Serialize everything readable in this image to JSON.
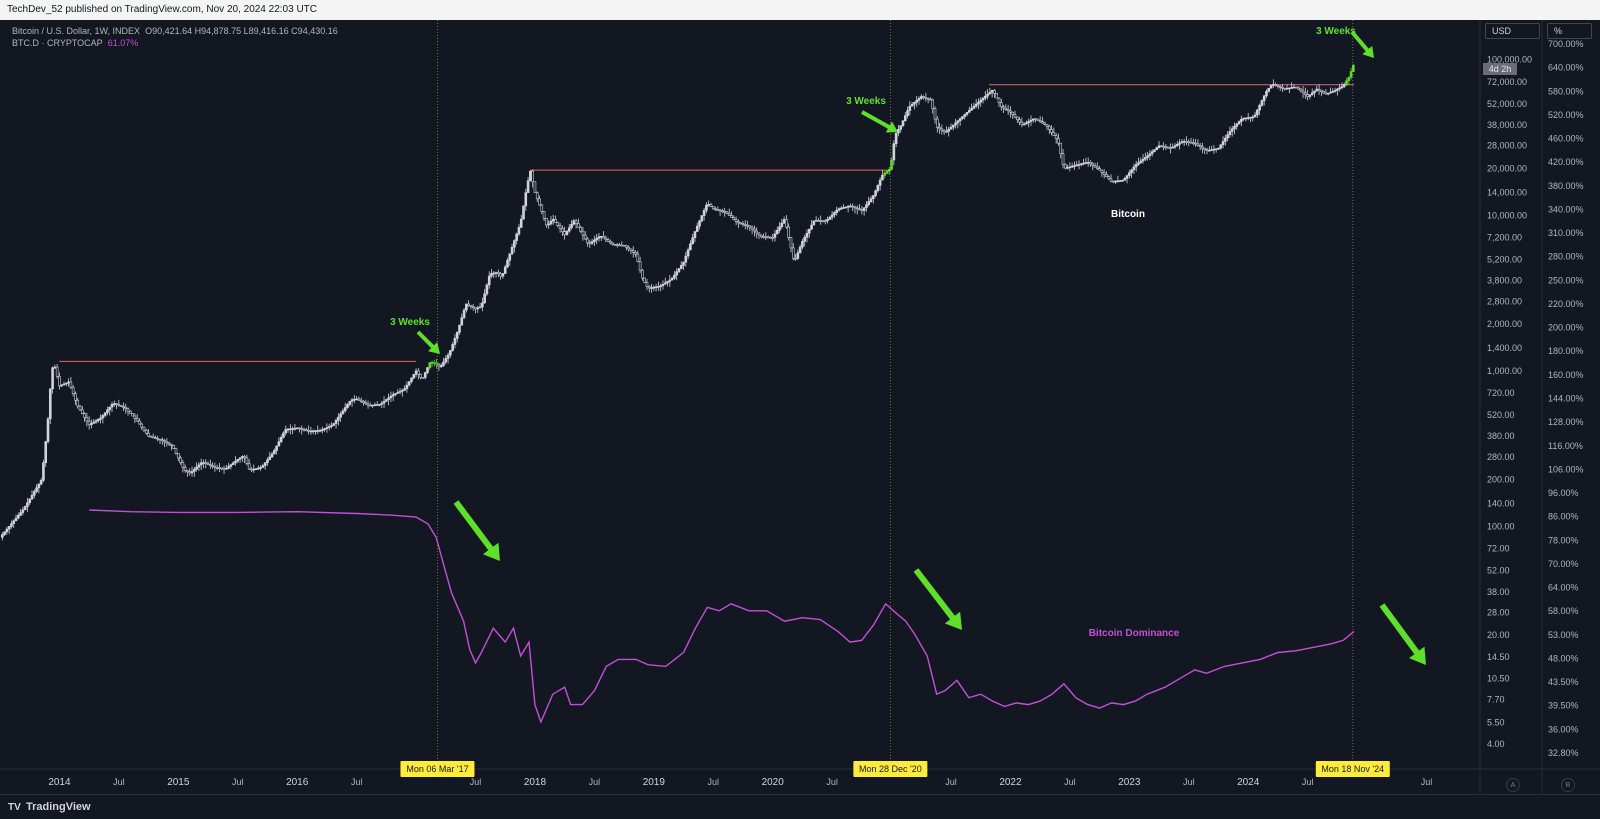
{
  "header": {
    "text": "TechDev_52 published on TradingView.com, Nov 20, 2024 22:03 UTC"
  },
  "legend": {
    "btc_prefix": "Bitcoin / U.S. Dollar, 1W, INDEX",
    "btc_ohlc": "O90,421.64  H94,878.75  L89,416.16  C94,430.16",
    "dom_prefix": "BTC.D · CRYPTOCAP",
    "dom_value": "61.07%"
  },
  "controls": {
    "currency": "USD",
    "percent": "%",
    "auto": "A",
    "log": "B"
  },
  "price_tag": "4d 2h",
  "footer": {
    "brand": "TradingView",
    "logo": "TV"
  },
  "colors": {
    "bg": "#131722",
    "candle": "#d1d4dc",
    "dominance": "#c150d6",
    "arrow": "#5ee02a",
    "resistance": "#e06a6a",
    "date_badge": "#ffeb3b"
  },
  "chart_data": {
    "type": "line",
    "x_axis": {
      "tick_labels": [
        "2014",
        "Jul",
        "2015",
        "Jul",
        "2016",
        "Jul",
        "Jul",
        "2018",
        "Jul",
        "2019",
        "Jul",
        "2020",
        "Jul",
        "Jul",
        "2022",
        "Jul",
        "2023",
        "Jul",
        "2024",
        "Jul",
        "Jul"
      ],
      "tick_x": [
        2014.0,
        2014.5,
        2015.0,
        2015.5,
        2016.0,
        2016.5,
        2017.5,
        2018.0,
        2018.5,
        2019.0,
        2019.5,
        2020.0,
        2020.5,
        2021.5,
        2022.0,
        2022.5,
        2023.0,
        2023.5,
        2024.0,
        2024.5,
        2025.5
      ],
      "range": [
        2013.5,
        2025.95
      ]
    },
    "y_axis_left_price": {
      "scale": "log",
      "range": [
        2.8,
        180000
      ],
      "tick_labels": [
        "4.00",
        "5.50",
        "7.70",
        "10.50",
        "14.50",
        "20.00",
        "28.00",
        "38.00",
        "52.00",
        "72.00",
        "100.00",
        "140.00",
        "200.00",
        "280.00",
        "380.00",
        "520.00",
        "720.00",
        "1,000.00",
        "1,400.00",
        "2,000.00",
        "2,800.00",
        "3,800.00",
        "5,200.00",
        "7,200.00",
        "10,000.00",
        "14,000.00",
        "20,000.00",
        "28,000.00",
        "38,000.00",
        "52,000.00",
        "72,000.00",
        "100,000.00"
      ],
      "tick_values": [
        4,
        5.5,
        7.7,
        10.5,
        14.5,
        20,
        28,
        38,
        52,
        72,
        100,
        140,
        200,
        280,
        380,
        520,
        720,
        1000,
        1400,
        2000,
        2800,
        3800,
        5200,
        7200,
        10000,
        14000,
        20000,
        28000,
        38000,
        52000,
        72000,
        100000
      ]
    },
    "y_axis_right_dominance": {
      "tick_labels": [
        "700.00%",
        "640.00%",
        "580.00%",
        "520.00%",
        "460.00%",
        "420.00%",
        "380.00%",
        "340.00%",
        "310.00%",
        "280.00%",
        "250.00%",
        "220.00%",
        "200.00%",
        "180.00%",
        "160.00%",
        "144.00%",
        "128.00%",
        "116.00%",
        "106.00%",
        "96.00%",
        "86.00%",
        "78.00%",
        "70.00%",
        "64.00%",
        "58.00%",
        "53.00%",
        "48.00%",
        "43.50%",
        "39.50%",
        "36.00%",
        "32.80%"
      ]
    },
    "series": [
      {
        "name": "Bitcoin",
        "kind": "candles",
        "points": [
          [
            2013.5,
            85
          ],
          [
            2013.7,
            130
          ],
          [
            2013.85,
            200
          ],
          [
            2013.9,
            450
          ],
          [
            2013.93,
            900
          ],
          [
            2013.95,
            1150
          ],
          [
            2014.0,
            800
          ],
          [
            2014.08,
            850
          ],
          [
            2014.15,
            600
          ],
          [
            2014.25,
            450
          ],
          [
            2014.35,
            500
          ],
          [
            2014.45,
            620
          ],
          [
            2014.55,
            580
          ],
          [
            2014.65,
            480
          ],
          [
            2014.75,
            380
          ],
          [
            2014.85,
            360
          ],
          [
            2014.95,
            330
          ],
          [
            2015.05,
            230
          ],
          [
            2015.1,
            220
          ],
          [
            2015.2,
            260
          ],
          [
            2015.3,
            240
          ],
          [
            2015.4,
            235
          ],
          [
            2015.5,
            270
          ],
          [
            2015.55,
            285
          ],
          [
            2015.6,
            230
          ],
          [
            2015.7,
            240
          ],
          [
            2015.8,
            300
          ],
          [
            2015.9,
            420
          ],
          [
            2016.0,
            430
          ],
          [
            2016.1,
            410
          ],
          [
            2016.2,
            415
          ],
          [
            2016.3,
            450
          ],
          [
            2016.45,
            650
          ],
          [
            2016.5,
            660
          ],
          [
            2016.6,
            600
          ],
          [
            2016.7,
            610
          ],
          [
            2016.8,
            700
          ],
          [
            2016.9,
            760
          ],
          [
            2017.0,
            1000
          ],
          [
            2017.05,
            880
          ],
          [
            2017.12,
            1150
          ],
          [
            2017.17,
            1100
          ],
          [
            2017.2,
            1050
          ],
          [
            2017.28,
            1300
          ],
          [
            2017.35,
            1800
          ],
          [
            2017.42,
            2700
          ],
          [
            2017.5,
            2500
          ],
          [
            2017.55,
            2600
          ],
          [
            2017.62,
            4200
          ],
          [
            2017.68,
            4300
          ],
          [
            2017.72,
            4000
          ],
          [
            2017.8,
            6000
          ],
          [
            2017.88,
            9000
          ],
          [
            2017.93,
            15000
          ],
          [
            2017.96,
            19500
          ],
          [
            2018.0,
            14000
          ],
          [
            2018.05,
            11000
          ],
          [
            2018.1,
            8500
          ],
          [
            2018.15,
            9500
          ],
          [
            2018.25,
            7500
          ],
          [
            2018.33,
            9300
          ],
          [
            2018.45,
            6500
          ],
          [
            2018.55,
            7400
          ],
          [
            2018.65,
            6500
          ],
          [
            2018.75,
            6400
          ],
          [
            2018.85,
            5600
          ],
          [
            2018.9,
            4000
          ],
          [
            2018.95,
            3400
          ],
          [
            2019.05,
            3500
          ],
          [
            2019.15,
            3900
          ],
          [
            2019.25,
            5000
          ],
          [
            2019.35,
            8000
          ],
          [
            2019.45,
            12000
          ],
          [
            2019.5,
            11000
          ],
          [
            2019.6,
            10500
          ],
          [
            2019.7,
            9000
          ],
          [
            2019.8,
            8500
          ],
          [
            2019.9,
            7300
          ],
          [
            2020.0,
            7200
          ],
          [
            2020.1,
            9500
          ],
          [
            2020.18,
            5000
          ],
          [
            2020.25,
            6800
          ],
          [
            2020.35,
            9300
          ],
          [
            2020.45,
            9200
          ],
          [
            2020.55,
            11000
          ],
          [
            2020.65,
            11500
          ],
          [
            2020.75,
            10700
          ],
          [
            2020.85,
            13500
          ],
          [
            2020.92,
            18000
          ],
          [
            2020.99,
            20000
          ],
          [
            2021.03,
            33000
          ],
          [
            2021.08,
            38000
          ],
          [
            2021.15,
            50000
          ],
          [
            2021.25,
            58000
          ],
          [
            2021.33,
            55000
          ],
          [
            2021.38,
            37000
          ],
          [
            2021.45,
            34000
          ],
          [
            2021.55,
            40000
          ],
          [
            2021.65,
            47000
          ],
          [
            2021.75,
            55000
          ],
          [
            2021.85,
            64000
          ],
          [
            2021.92,
            50000
          ],
          [
            2022.0,
            46000
          ],
          [
            2022.1,
            38000
          ],
          [
            2022.2,
            42000
          ],
          [
            2022.3,
            38000
          ],
          [
            2022.4,
            30000
          ],
          [
            2022.45,
            20000
          ],
          [
            2022.55,
            21000
          ],
          [
            2022.65,
            22000
          ],
          [
            2022.75,
            19500
          ],
          [
            2022.85,
            16500
          ],
          [
            2022.95,
            16800
          ],
          [
            2023.05,
            21000
          ],
          [
            2023.15,
            24000
          ],
          [
            2023.25,
            28000
          ],
          [
            2023.35,
            27000
          ],
          [
            2023.45,
            30000
          ],
          [
            2023.55,
            29000
          ],
          [
            2023.65,
            26000
          ],
          [
            2023.75,
            27000
          ],
          [
            2023.85,
            35000
          ],
          [
            2023.95,
            42000
          ],
          [
            2024.05,
            43000
          ],
          [
            2024.15,
            62000
          ],
          [
            2024.2,
            70000
          ],
          [
            2024.3,
            65000
          ],
          [
            2024.4,
            67000
          ],
          [
            2024.5,
            58000
          ],
          [
            2024.58,
            65000
          ],
          [
            2024.65,
            60000
          ],
          [
            2024.72,
            63000
          ],
          [
            2024.8,
            68000
          ],
          [
            2024.85,
            78000
          ],
          [
            2024.89,
            94430
          ]
        ]
      },
      {
        "name": "Bitcoin Dominance",
        "kind": "line",
        "points": [
          [
            2014.25,
            96.0
          ],
          [
            2014.6,
            95.5
          ],
          [
            2015.0,
            95.3
          ],
          [
            2015.5,
            95.3
          ],
          [
            2016.0,
            95.5
          ],
          [
            2016.5,
            95.0
          ],
          [
            2016.8,
            94.5
          ],
          [
            2017.0,
            94.0
          ],
          [
            2017.1,
            92.0
          ],
          [
            2017.17,
            88.0
          ],
          [
            2017.25,
            78.0
          ],
          [
            2017.3,
            72.0
          ],
          [
            2017.35,
            68.0
          ],
          [
            2017.4,
            64.0
          ],
          [
            2017.45,
            56.0
          ],
          [
            2017.5,
            52.0
          ],
          [
            2017.55,
            55.0
          ],
          [
            2017.65,
            62.0
          ],
          [
            2017.75,
            58.0
          ],
          [
            2017.82,
            62.0
          ],
          [
            2017.88,
            54.0
          ],
          [
            2017.95,
            58.0
          ],
          [
            2018.0,
            40.0
          ],
          [
            2018.05,
            35.0
          ],
          [
            2018.15,
            43.0
          ],
          [
            2018.25,
            45.0
          ],
          [
            2018.3,
            40.0
          ],
          [
            2018.4,
            40.0
          ],
          [
            2018.5,
            44.0
          ],
          [
            2018.6,
            51.0
          ],
          [
            2018.7,
            53.0
          ],
          [
            2018.85,
            53.0
          ],
          [
            2018.95,
            51.5
          ],
          [
            2019.1,
            51.0
          ],
          [
            2019.25,
            55.0
          ],
          [
            2019.35,
            62.0
          ],
          [
            2019.45,
            68.0
          ],
          [
            2019.55,
            67.0
          ],
          [
            2019.65,
            69.0
          ],
          [
            2019.8,
            67.0
          ],
          [
            2019.95,
            67.0
          ],
          [
            2020.1,
            64.0
          ],
          [
            2020.25,
            65.0
          ],
          [
            2020.4,
            64.5
          ],
          [
            2020.55,
            61.0
          ],
          [
            2020.65,
            58.0
          ],
          [
            2020.75,
            58.5
          ],
          [
            2020.85,
            63.0
          ],
          [
            2020.95,
            69.0
          ],
          [
            2021.05,
            66.0
          ],
          [
            2021.12,
            64.0
          ],
          [
            2021.2,
            60.0
          ],
          [
            2021.3,
            54.0
          ],
          [
            2021.38,
            43.0
          ],
          [
            2021.45,
            44.0
          ],
          [
            2021.55,
            47.0
          ],
          [
            2021.65,
            42.0
          ],
          [
            2021.75,
            43.0
          ],
          [
            2021.85,
            41.0
          ],
          [
            2021.95,
            39.5
          ],
          [
            2022.05,
            40.5
          ],
          [
            2022.15,
            40.0
          ],
          [
            2022.25,
            41.0
          ],
          [
            2022.35,
            43.0
          ],
          [
            2022.45,
            46.0
          ],
          [
            2022.55,
            42.0
          ],
          [
            2022.65,
            40.0
          ],
          [
            2022.75,
            39.0
          ],
          [
            2022.85,
            40.5
          ],
          [
            2022.95,
            40.0
          ],
          [
            2023.05,
            41.0
          ],
          [
            2023.15,
            43.0
          ],
          [
            2023.3,
            45.0
          ],
          [
            2023.45,
            48.0
          ],
          [
            2023.55,
            50.0
          ],
          [
            2023.65,
            49.0
          ],
          [
            2023.8,
            51.0
          ],
          [
            2023.95,
            52.0
          ],
          [
            2024.1,
            53.0
          ],
          [
            2024.25,
            55.0
          ],
          [
            2024.4,
            55.5
          ],
          [
            2024.55,
            56.5
          ],
          [
            2024.7,
            57.5
          ],
          [
            2024.8,
            58.5
          ],
          [
            2024.89,
            61.07
          ]
        ]
      }
    ],
    "resistance_lines": [
      {
        "from": 2014.0,
        "to": 2017.0,
        "value": 1150
      },
      {
        "from": 2017.96,
        "to": 2021.0,
        "value": 19500
      },
      {
        "from": 2021.82,
        "to": 2024.89,
        "value": 69000
      }
    ],
    "vertical_markers": [
      {
        "x": 2017.18,
        "label": "Mon 06 Mar '17"
      },
      {
        "x": 2020.99,
        "label": "Mon 28 Dec '20"
      },
      {
        "x": 2024.88,
        "label": "Mon 18 Nov '24"
      }
    ],
    "annotations": [
      {
        "text": "3 Weeks"
      },
      {
        "text": "3 Weeks"
      },
      {
        "text": "3 Weeks"
      },
      {
        "text": "Bitcoin"
      },
      {
        "text": "Bitcoin Dominance"
      }
    ]
  }
}
